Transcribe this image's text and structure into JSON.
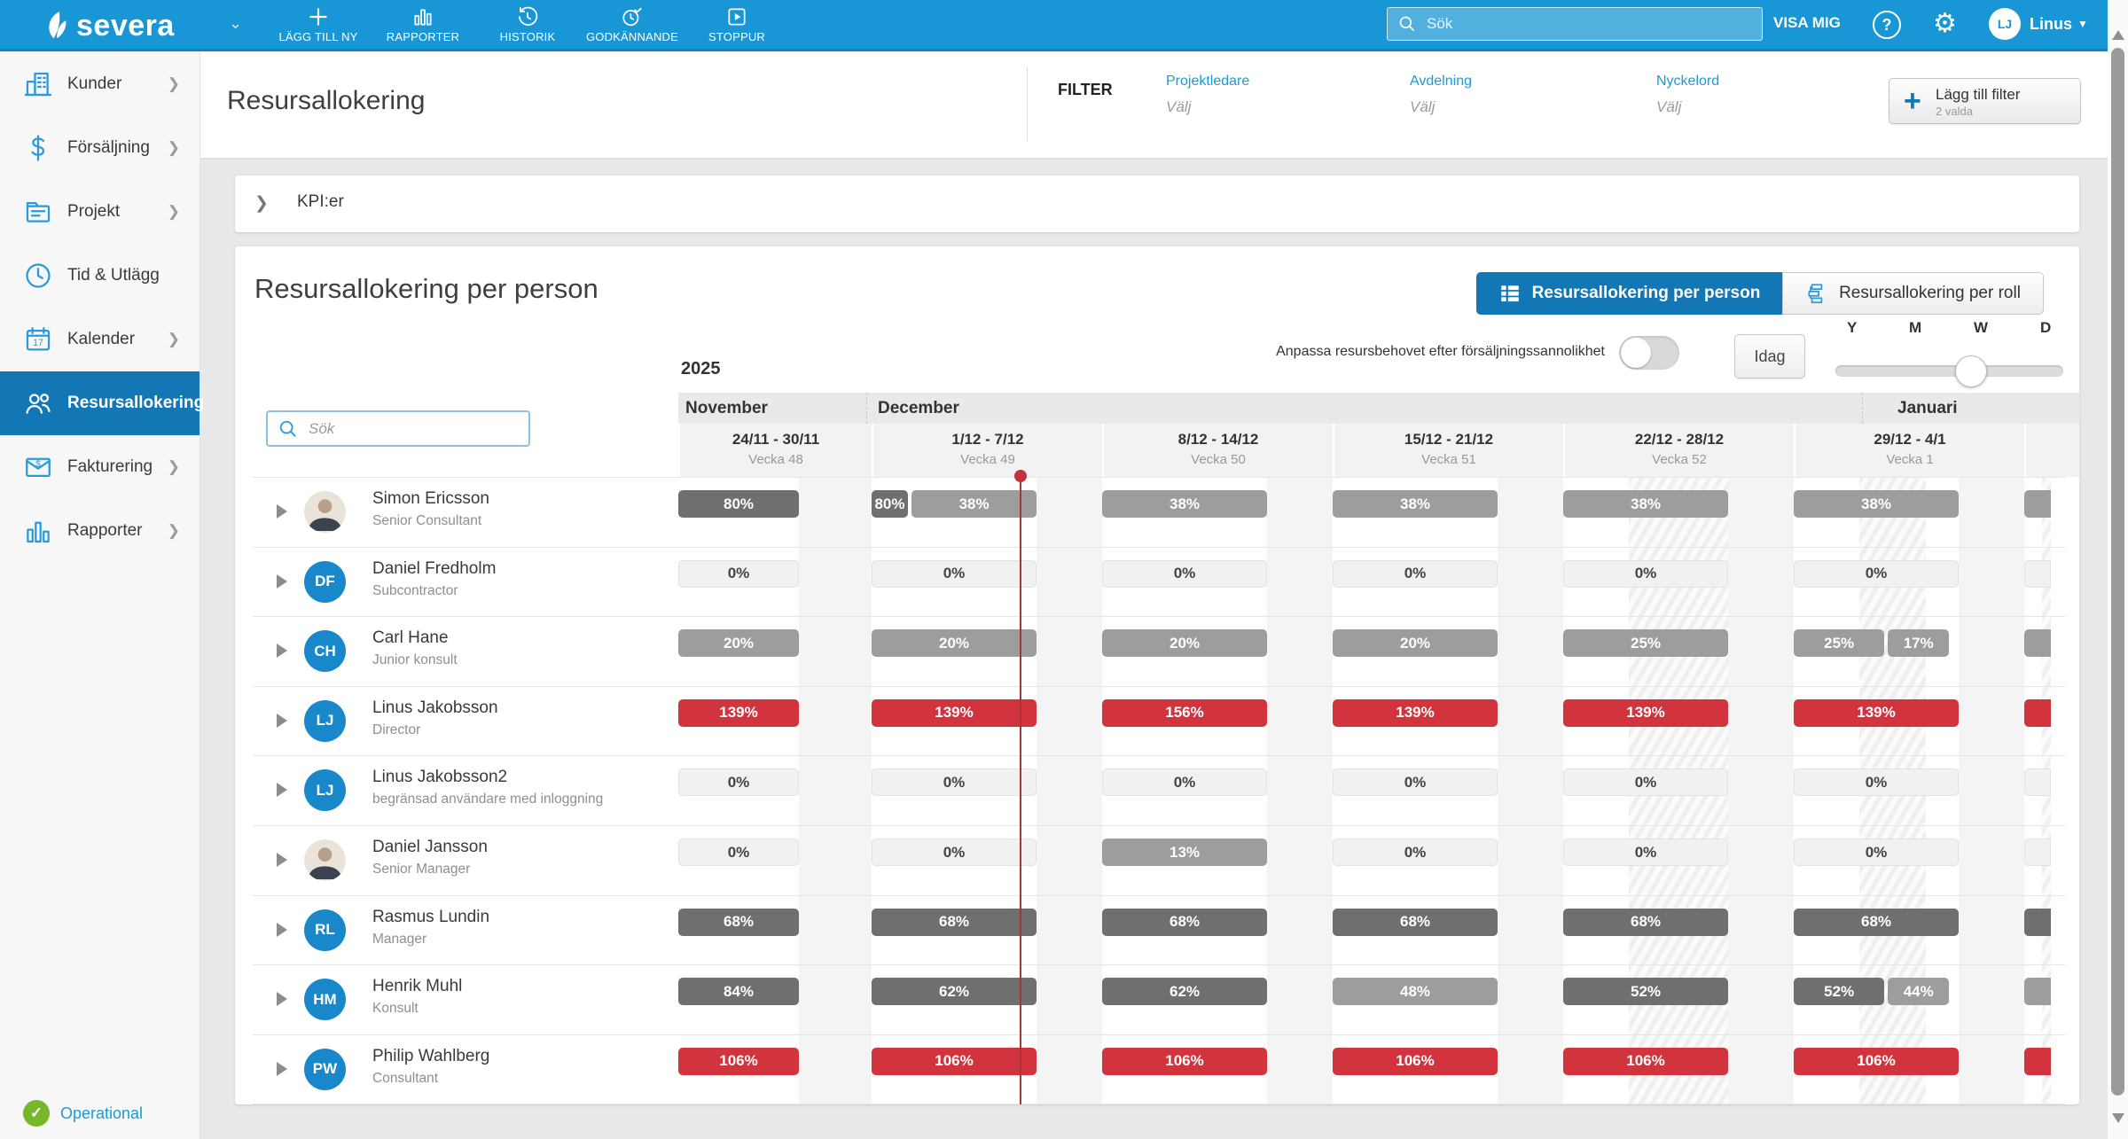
{
  "navbar": {
    "brand": "severa",
    "items": [
      {
        "label": "LÄGG TILL NY",
        "icon": "plus-icon"
      },
      {
        "label": "RAPPORTER",
        "icon": "report-chart-icon"
      },
      {
        "label": "HISTORIK",
        "icon": "history-clock-icon"
      },
      {
        "label": "GODKÄNNANDE",
        "icon": "approval-clock-icon"
      },
      {
        "label": "STOPPUR",
        "icon": "stopwatch-icon"
      }
    ],
    "search_placeholder": "Sök",
    "visa_mig": "VISA MIG",
    "user_initials": "LJ",
    "user_name": "Linus"
  },
  "sidebar": {
    "items": [
      {
        "label": "Kunder",
        "icon": "customers-icon",
        "chevron": true,
        "active": false
      },
      {
        "label": "Försäljning",
        "icon": "sales-icon",
        "chevron": true,
        "active": false
      },
      {
        "label": "Projekt",
        "icon": "projects-icon",
        "chevron": true,
        "active": false
      },
      {
        "label": "Tid & Utlägg",
        "icon": "time-icon",
        "chevron": false,
        "active": false
      },
      {
        "label": "Kalender",
        "icon": "calendar-icon",
        "chevron": true,
        "active": false
      },
      {
        "label": "Resursallokering",
        "icon": "resourcing-icon",
        "chevron": false,
        "active": true
      },
      {
        "label": "Fakturering",
        "icon": "invoicing-icon",
        "chevron": true,
        "active": false
      },
      {
        "label": "Rapporter",
        "icon": "reports-icon",
        "chevron": true,
        "active": false
      }
    ],
    "status": "Operational"
  },
  "page_header": {
    "title": "Resursallokering",
    "filter_label": "FILTER",
    "filters": [
      {
        "label": "Projektledare",
        "value": "Välj"
      },
      {
        "label": "Avdelning",
        "value": "Välj"
      },
      {
        "label": "Nyckelord",
        "value": "Välj"
      }
    ],
    "add_filter": {
      "label": "Lägg till filter",
      "badge": "2 valda"
    }
  },
  "kpi": {
    "label": "KPI:er"
  },
  "main": {
    "title": "Resursallokering per person",
    "tabs": [
      {
        "label": "Resursallokering per person",
        "icon": "list-grid-icon",
        "active": true
      },
      {
        "label": "Resursallokering per roll",
        "icon": "org-chart-icon",
        "active": false
      }
    ],
    "probability_label": "Anpassa resursbehovet efter försäljningssannolikhet",
    "probability_toggle_on": false,
    "today_label": "Idag",
    "zoom_levels": [
      "Y",
      "M",
      "W",
      "D"
    ],
    "zoom_selected": "W",
    "search_placeholder": "Sök"
  },
  "timeline": {
    "year": "2025",
    "months": [
      "November",
      "December",
      "Januari"
    ],
    "weeks": [
      {
        "range": "24/11 - 30/11",
        "week": "Vecka 48"
      },
      {
        "range": "1/12 - 7/12",
        "week": "Vecka 49"
      },
      {
        "range": "8/12 - 14/12",
        "week": "Vecka 50"
      },
      {
        "range": "15/12 - 21/12",
        "week": "Vecka 51"
      },
      {
        "range": "22/12 - 28/12",
        "week": "Vecka 52"
      },
      {
        "range": "29/12 - 4/1",
        "week": "Vecka 1"
      }
    ]
  },
  "people": [
    {
      "name": "Simon Ericsson",
      "role": "Senior Consultant",
      "avatar": "photo",
      "sliver": "mid",
      "weeks": [
        [
          {
            "label": "80%",
            "tone": "dark",
            "w": 1
          }
        ],
        [
          {
            "label": "80%",
            "tone": "dark",
            "w": 0.22
          },
          {
            "label": "38%",
            "tone": "mid",
            "w": 0.76
          }
        ],
        [
          {
            "label": "38%",
            "tone": "mid",
            "w": 1
          }
        ],
        [
          {
            "label": "38%",
            "tone": "mid",
            "w": 1
          }
        ],
        [
          {
            "label": "38%",
            "tone": "mid",
            "w": 1
          }
        ],
        [
          {
            "label": "38%",
            "tone": "mid",
            "w": 1
          }
        ]
      ]
    },
    {
      "name": "Daniel Fredholm",
      "role": "Subcontractor",
      "avatar": "DF",
      "sliver": "low",
      "weeks": [
        [
          {
            "label": "0%",
            "tone": "low",
            "w": 1
          }
        ],
        [
          {
            "label": "0%",
            "tone": "low",
            "w": 1
          }
        ],
        [
          {
            "label": "0%",
            "tone": "low",
            "w": 1
          }
        ],
        [
          {
            "label": "0%",
            "tone": "low",
            "w": 1
          }
        ],
        [
          {
            "label": "0%",
            "tone": "low",
            "w": 1
          }
        ],
        [
          {
            "label": "0%",
            "tone": "low",
            "w": 1
          }
        ]
      ]
    },
    {
      "name": "Carl Hane",
      "role": "Junior konsult",
      "avatar": "CH",
      "sliver": "mid",
      "weeks": [
        [
          {
            "label": "20%",
            "tone": "mid",
            "w": 1
          }
        ],
        [
          {
            "label": "20%",
            "tone": "mid",
            "w": 1
          }
        ],
        [
          {
            "label": "20%",
            "tone": "mid",
            "w": 1
          }
        ],
        [
          {
            "label": "20%",
            "tone": "mid",
            "w": 1
          }
        ],
        [
          {
            "label": "25%",
            "tone": "mid",
            "w": 1
          }
        ],
        [
          {
            "label": "25%",
            "tone": "mid",
            "w": 0.55
          },
          {
            "label": "17%",
            "tone": "mid",
            "w": 0.37
          }
        ]
      ]
    },
    {
      "name": "Linus Jakobsson",
      "role": "Director",
      "avatar": "LJ",
      "sliver": "over",
      "weeks": [
        [
          {
            "label": "139%",
            "tone": "over",
            "w": 1
          }
        ],
        [
          {
            "label": "139%",
            "tone": "over",
            "w": 1
          }
        ],
        [
          {
            "label": "156%",
            "tone": "over",
            "w": 1
          }
        ],
        [
          {
            "label": "139%",
            "tone": "over",
            "w": 1
          }
        ],
        [
          {
            "label": "139%",
            "tone": "over",
            "w": 1
          }
        ],
        [
          {
            "label": "139%",
            "tone": "over",
            "w": 1
          }
        ]
      ]
    },
    {
      "name": "Linus Jakobsson2",
      "role": "begränsad användare med inloggning",
      "avatar": "LJ",
      "sliver": "low",
      "weeks": [
        [
          {
            "label": "0%",
            "tone": "low",
            "w": 1
          }
        ],
        [
          {
            "label": "0%",
            "tone": "low",
            "w": 1
          }
        ],
        [
          {
            "label": "0%",
            "tone": "low",
            "w": 1
          }
        ],
        [
          {
            "label": "0%",
            "tone": "low",
            "w": 1
          }
        ],
        [
          {
            "label": "0%",
            "tone": "low",
            "w": 1
          }
        ],
        [
          {
            "label": "0%",
            "tone": "low",
            "w": 1
          }
        ]
      ]
    },
    {
      "name": "Daniel Jansson",
      "role": "Senior Manager",
      "avatar": "photo",
      "sliver": "low",
      "weeks": [
        [
          {
            "label": "0%",
            "tone": "low",
            "w": 1
          }
        ],
        [
          {
            "label": "0%",
            "tone": "low",
            "w": 1
          }
        ],
        [
          {
            "label": "13%",
            "tone": "mid",
            "w": 1
          }
        ],
        [
          {
            "label": "0%",
            "tone": "low",
            "w": 1
          }
        ],
        [
          {
            "label": "0%",
            "tone": "low",
            "w": 1
          }
        ],
        [
          {
            "label": "0%",
            "tone": "low",
            "w": 1
          }
        ]
      ]
    },
    {
      "name": "Rasmus Lundin",
      "role": "Manager",
      "avatar": "RL",
      "sliver": "dark",
      "weeks": [
        [
          {
            "label": "68%",
            "tone": "dark",
            "w": 1
          }
        ],
        [
          {
            "label": "68%",
            "tone": "dark",
            "w": 1
          }
        ],
        [
          {
            "label": "68%",
            "tone": "dark",
            "w": 1
          }
        ],
        [
          {
            "label": "68%",
            "tone": "dark",
            "w": 1
          }
        ],
        [
          {
            "label": "68%",
            "tone": "dark",
            "w": 1
          }
        ],
        [
          {
            "label": "68%",
            "tone": "dark",
            "w": 1
          }
        ]
      ]
    },
    {
      "name": "Henrik Muhl",
      "role": "Konsult",
      "avatar": "HM",
      "sliver": "mid",
      "weeks": [
        [
          {
            "label": "84%",
            "tone": "dark",
            "w": 1
          }
        ],
        [
          {
            "label": "62%",
            "tone": "dark",
            "w": 1
          }
        ],
        [
          {
            "label": "62%",
            "tone": "dark",
            "w": 1
          }
        ],
        [
          {
            "label": "48%",
            "tone": "mid",
            "w": 1
          }
        ],
        [
          {
            "label": "52%",
            "tone": "dark",
            "w": 1
          }
        ],
        [
          {
            "label": "52%",
            "tone": "dark",
            "w": 0.55
          },
          {
            "label": "44%",
            "tone": "mid",
            "w": 0.37
          }
        ]
      ]
    },
    {
      "name": "Philip Wahlberg",
      "role": "Consultant",
      "avatar": "PW",
      "sliver": "over",
      "weeks": [
        [
          {
            "label": "106%",
            "tone": "over",
            "w": 1
          }
        ],
        [
          {
            "label": "106%",
            "tone": "over",
            "w": 1
          }
        ],
        [
          {
            "label": "106%",
            "tone": "over",
            "w": 1
          }
        ],
        [
          {
            "label": "106%",
            "tone": "over",
            "w": 1
          }
        ],
        [
          {
            "label": "106%",
            "tone": "over",
            "w": 1
          }
        ],
        [
          {
            "label": "106%",
            "tone": "over",
            "w": 1
          }
        ]
      ]
    }
  ],
  "colors": {
    "over": "#d2343e",
    "dark": "#6f6f6f",
    "mid": "#9d9d9d",
    "low": "#f1f1f1",
    "accent_blue": "#1377b5",
    "link_blue": "#1d9ad6",
    "nav_blue": "#1896d5",
    "status_green": "#76b82a",
    "today_red": "#a8343a"
  }
}
